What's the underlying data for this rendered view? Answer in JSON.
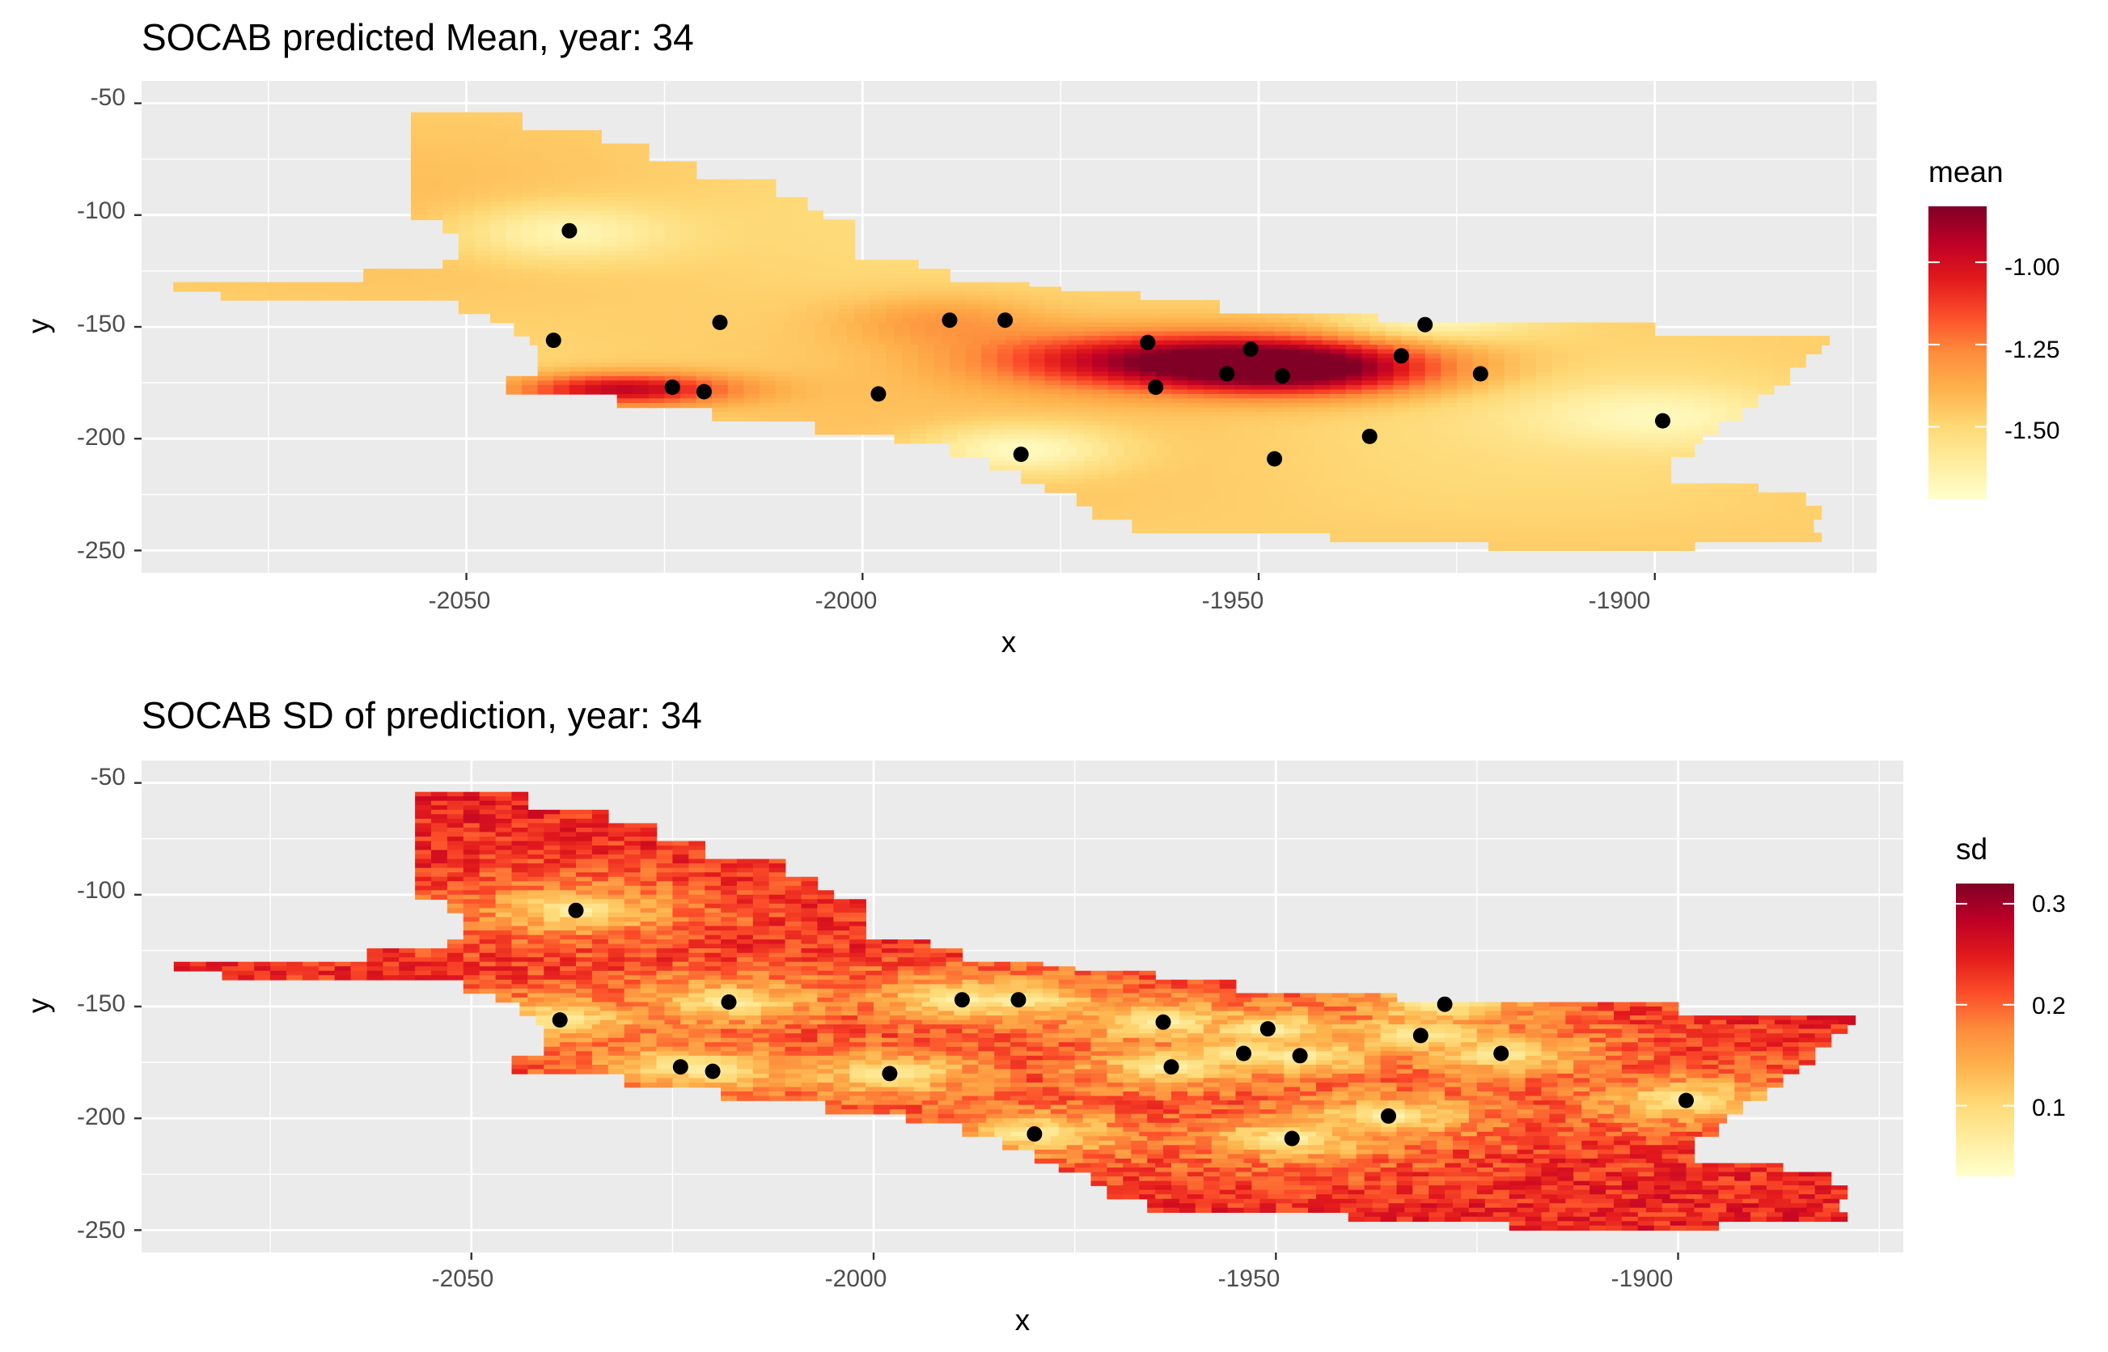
{
  "figure": {
    "background": "#ffffff",
    "panel_background": "#ebebeb",
    "grid_color": "#ffffff",
    "point_color": "#000000",
    "palette": [
      "#ffffcc",
      "#ffeda0",
      "#fed976",
      "#feb24c",
      "#fd8d3c",
      "#fc4e2a",
      "#e31a1c",
      "#bd0026",
      "#800026"
    ],
    "palette_name": "YlOrRd"
  },
  "chart_data": [
    {
      "type": "heatmap",
      "title": "SOCAB predicted Mean, year:  34",
      "xlabel": "x",
      "ylabel": "y",
      "xlim": [
        -2091,
        -1872
      ],
      "ylim": [
        -260,
        -40
      ],
      "x_ticks": [
        -2050,
        -2000,
        -1950,
        -1900
      ],
      "x_tick_labels": [
        "-2050",
        "-2000",
        "-1950",
        "-1900"
      ],
      "y_ticks": [
        -50,
        -100,
        -150,
        -200,
        -250
      ],
      "y_tick_labels": [
        "-50",
        "-100",
        "-150",
        "-200",
        "-250"
      ],
      "grid": true,
      "fill_variable": "mean",
      "legend": {
        "title": "mean",
        "placement": "right",
        "range": [
          -1.72,
          -0.83
        ],
        "ticks": [
          -1.0,
          -1.25,
          -1.5
        ],
        "tick_labels": [
          "-1.00",
          "-1.25",
          "-1.50"
        ]
      },
      "hotspots": [
        {
          "x": -1955,
          "y": -165,
          "value": -0.85,
          "sx": 16,
          "sy": 9
        },
        {
          "x": -1945,
          "y": -170,
          "value": -1.0,
          "sx": 13,
          "sy": 8
        },
        {
          "x": -1975,
          "y": -165,
          "value": -1.3,
          "sx": 10,
          "sy": 8
        },
        {
          "x": -1990,
          "y": -148,
          "value": -1.3,
          "sx": 9,
          "sy": 8
        },
        {
          "x": -2030,
          "y": -178,
          "value": -0.9,
          "sx": 10,
          "sy": 5
        },
        {
          "x": -1980,
          "y": -205,
          "value": -1.72,
          "sx": 9,
          "sy": 8
        },
        {
          "x": -2037,
          "y": -108,
          "value": -1.68,
          "sx": 10,
          "sy": 9
        },
        {
          "x": -1928,
          "y": -148,
          "value": -1.7,
          "sx": 9,
          "sy": 6
        },
        {
          "x": -1900,
          "y": -190,
          "value": -1.7,
          "sx": 12,
          "sy": 10
        }
      ],
      "stations": [
        {
          "x": -2037,
          "y": -107
        },
        {
          "x": -2039,
          "y": -156
        },
        {
          "x": -2018,
          "y": -148
        },
        {
          "x": -1989,
          "y": -147
        },
        {
          "x": -1982,
          "y": -147
        },
        {
          "x": -2024,
          "y": -177
        },
        {
          "x": -2020,
          "y": -179
        },
        {
          "x": -1998,
          "y": -180
        },
        {
          "x": -1980,
          "y": -207
        },
        {
          "x": -1964,
          "y": -157
        },
        {
          "x": -1963,
          "y": -177
        },
        {
          "x": -1951,
          "y": -160
        },
        {
          "x": -1954,
          "y": -171
        },
        {
          "x": -1947,
          "y": -172
        },
        {
          "x": -1948,
          "y": -209
        },
        {
          "x": -1929,
          "y": -149
        },
        {
          "x": -1932,
          "y": -163
        },
        {
          "x": -1936,
          "y": -199
        },
        {
          "x": -1922,
          "y": -171
        },
        {
          "x": -1899,
          "y": -192
        }
      ]
    },
    {
      "type": "heatmap",
      "title": "SOCAB SD of prediction, year:  34",
      "xlabel": "x",
      "ylabel": "y",
      "xlim": [
        -2091,
        -1872
      ],
      "ylim": [
        -260,
        -40
      ],
      "x_ticks": [
        -2050,
        -2000,
        -1950,
        -1900
      ],
      "x_tick_labels": [
        "-2050",
        "-2000",
        "-1950",
        "-1900"
      ],
      "y_ticks": [
        -50,
        -100,
        -150,
        -200,
        -250
      ],
      "y_tick_labels": [
        "-50",
        "-100",
        "-150",
        "-200",
        "-250"
      ],
      "grid": true,
      "fill_variable": "sd",
      "legend": {
        "title": "sd",
        "placement": "right",
        "range": [
          0.03,
          0.32
        ],
        "ticks": [
          0.3,
          0.2,
          0.1
        ],
        "tick_labels": [
          "0.3",
          "0.2",
          "0.1"
        ]
      },
      "stations": [
        {
          "x": -2037,
          "y": -107
        },
        {
          "x": -2039,
          "y": -156
        },
        {
          "x": -2018,
          "y": -148
        },
        {
          "x": -1989,
          "y": -147
        },
        {
          "x": -1982,
          "y": -147
        },
        {
          "x": -2024,
          "y": -177
        },
        {
          "x": -2020,
          "y": -179
        },
        {
          "x": -1998,
          "y": -180
        },
        {
          "x": -1980,
          "y": -207
        },
        {
          "x": -1964,
          "y": -157
        },
        {
          "x": -1963,
          "y": -177
        },
        {
          "x": -1951,
          "y": -160
        },
        {
          "x": -1954,
          "y": -171
        },
        {
          "x": -1947,
          "y": -172
        },
        {
          "x": -1948,
          "y": -209
        },
        {
          "x": -1929,
          "y": -149
        },
        {
          "x": -1932,
          "y": -163
        },
        {
          "x": -1936,
          "y": -199
        },
        {
          "x": -1922,
          "y": -171
        },
        {
          "x": -1899,
          "y": -192
        }
      ]
    }
  ]
}
